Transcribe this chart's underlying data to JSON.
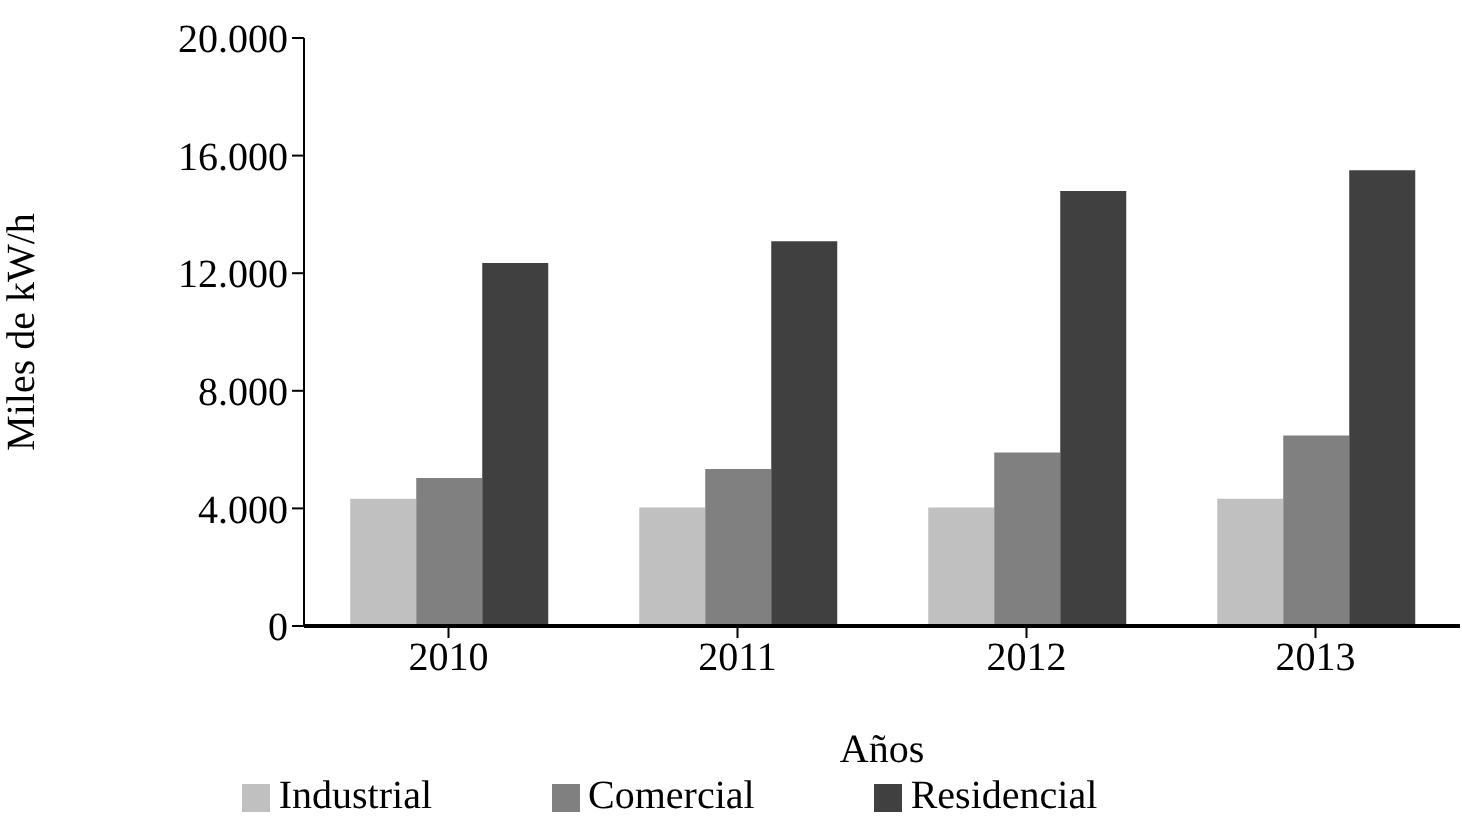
{
  "chart_data": {
    "type": "bar",
    "xlabel": "Años",
    "ylabel": "Miles de kW/h",
    "categories": [
      "2010",
      "2011",
      "2012",
      "2013"
    ],
    "series": [
      {
        "name": "Industrial",
        "color": "#c0c0c0",
        "values": [
          4330,
          4030,
          4030,
          4330
        ]
      },
      {
        "name": "Comercial",
        "color": "#808080",
        "values": [
          5030,
          5340,
          5900,
          6480
        ]
      },
      {
        "name": "Residencial",
        "color": "#404040",
        "values": [
          12350,
          13090,
          14800,
          15500
        ]
      }
    ],
    "ylim": [
      0,
      20000
    ],
    "yticks": [
      {
        "value": 0,
        "label": "0"
      },
      {
        "value": 4000,
        "label": "4.000"
      },
      {
        "value": 8000,
        "label": "8.000"
      },
      {
        "value": 12000,
        "label": "12.000"
      },
      {
        "value": 16000,
        "label": "16.000"
      },
      {
        "value": 20000,
        "label": "20.000"
      }
    ],
    "grid": false,
    "legend": "bottom"
  }
}
